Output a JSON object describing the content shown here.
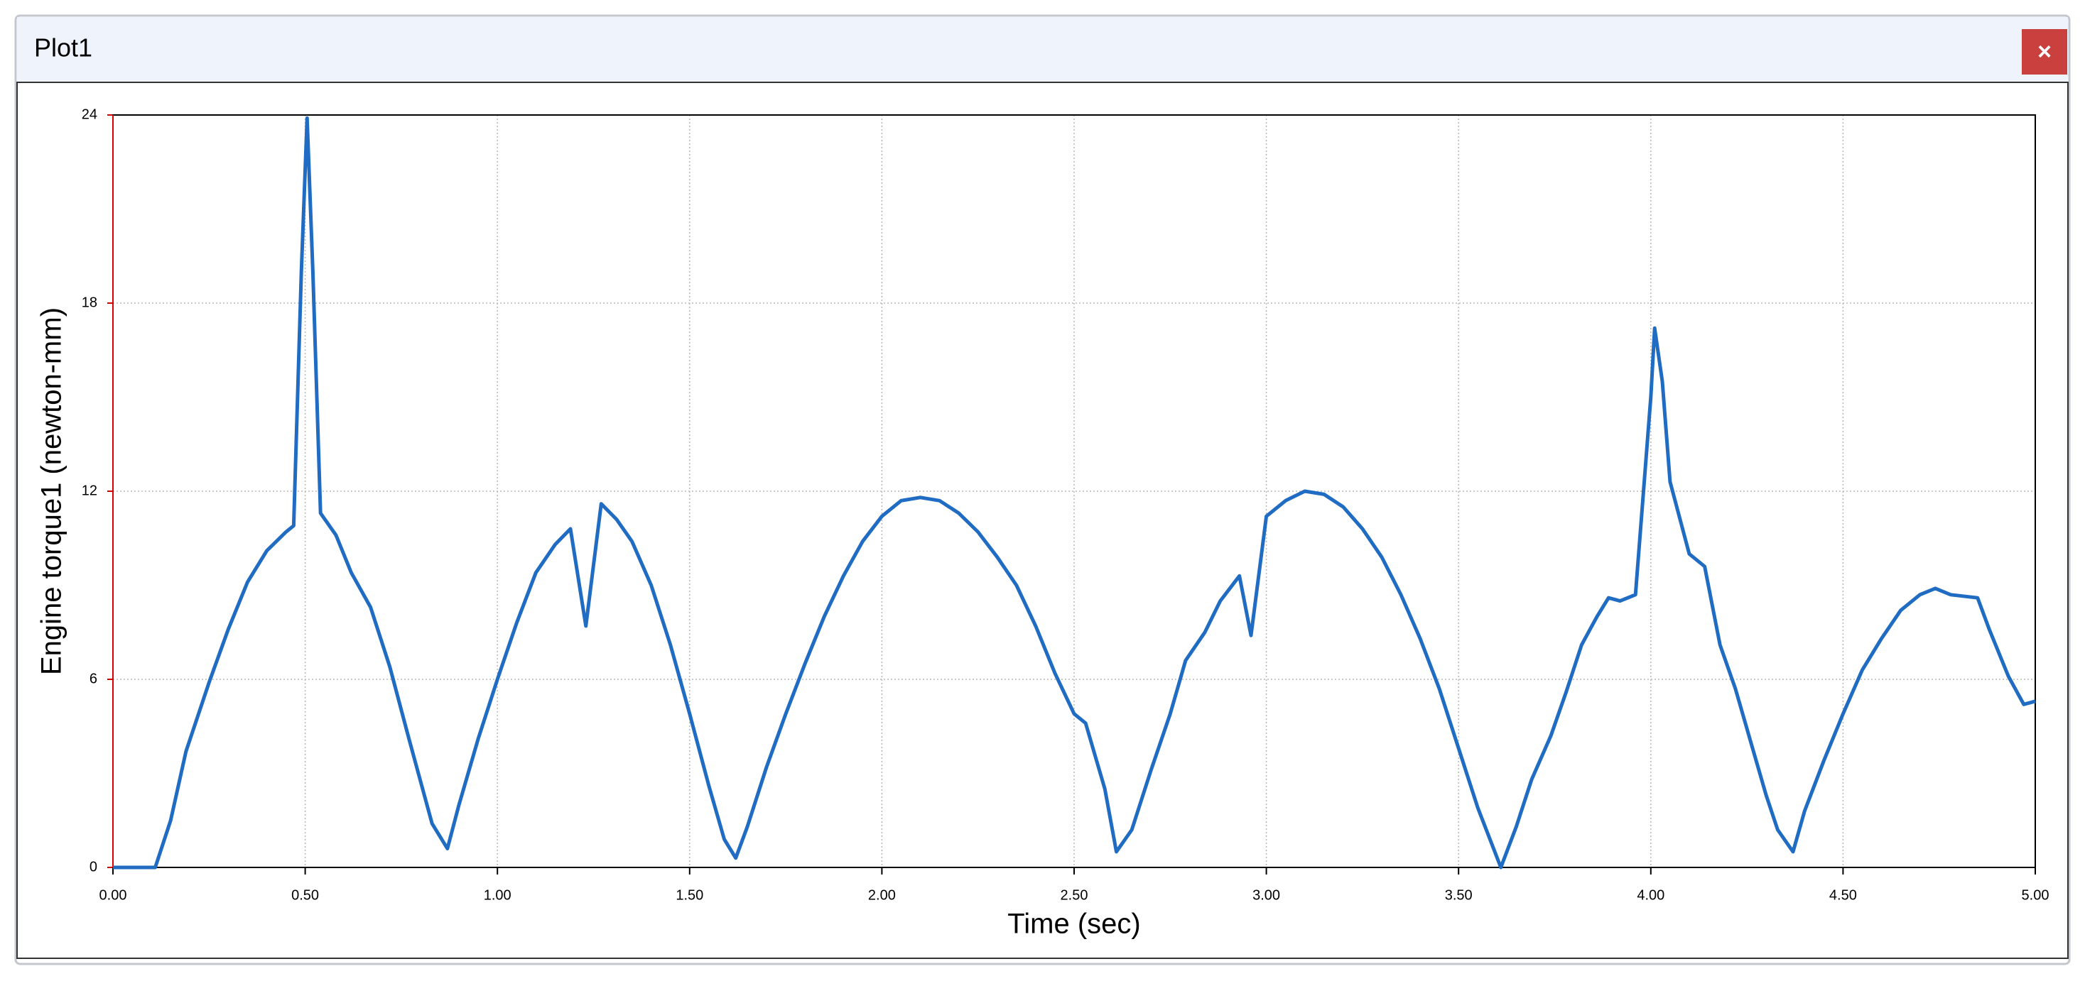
{
  "window": {
    "title": "Plot1",
    "close": "×"
  },
  "chart_data": {
    "type": "line",
    "x_label": "Time (sec)",
    "y_label": "Engine torque1 (newton-mm)",
    "xlim": [
      0,
      5
    ],
    "ylim": [
      0,
      24
    ],
    "xticks": [
      {
        "value": 0,
        "label": "0.00"
      },
      {
        "value": 0.5,
        "label": "0.50"
      },
      {
        "value": 1,
        "label": "1.00"
      },
      {
        "value": 1.5,
        "label": "1.50"
      },
      {
        "value": 2,
        "label": "2.00"
      },
      {
        "value": 2.5,
        "label": "2.50"
      },
      {
        "value": 3,
        "label": "3.00"
      },
      {
        "value": 3.5,
        "label": "3.50"
      },
      {
        "value": 4,
        "label": "4.00"
      },
      {
        "value": 4.5,
        "label": "4.50"
      },
      {
        "value": 5,
        "label": "5.00"
      }
    ],
    "yticks": [
      0,
      6,
      12,
      18,
      24
    ],
    "grid": true,
    "series": [
      {
        "color": "#1f6cc2",
        "x": [
          0.0,
          0.11,
          0.15,
          0.19,
          0.25,
          0.3,
          0.35,
          0.4,
          0.45,
          0.47,
          0.49,
          0.505,
          0.52,
          0.54,
          0.58,
          0.62,
          0.67,
          0.72,
          0.77,
          0.83,
          0.87,
          0.9,
          0.95,
          1.0,
          1.05,
          1.1,
          1.15,
          1.19,
          1.23,
          1.27,
          1.31,
          1.35,
          1.4,
          1.45,
          1.5,
          1.55,
          1.59,
          1.62,
          1.65,
          1.7,
          1.75,
          1.8,
          1.85,
          1.9,
          1.95,
          2.0,
          2.05,
          2.1,
          2.15,
          2.2,
          2.25,
          2.3,
          2.35,
          2.4,
          2.45,
          2.5,
          2.53,
          2.58,
          2.61,
          2.65,
          2.7,
          2.75,
          2.79,
          2.84,
          2.88,
          2.93,
          2.96,
          3.0,
          3.05,
          3.1,
          3.15,
          3.2,
          3.25,
          3.3,
          3.35,
          3.4,
          3.45,
          3.5,
          3.55,
          3.61,
          3.65,
          3.69,
          3.74,
          3.78,
          3.82,
          3.86,
          3.89,
          3.92,
          3.96,
          4.0,
          4.01,
          4.03,
          4.05,
          4.1,
          4.14,
          4.18,
          4.22,
          4.26,
          4.3,
          4.33,
          4.37,
          4.4,
          4.45,
          4.5,
          4.55,
          4.6,
          4.65,
          4.7,
          4.74,
          4.78,
          4.85,
          4.88,
          4.93,
          4.97,
          5.0
        ],
        "values": [
          0,
          0,
          1.5,
          3.7,
          5.9,
          7.6,
          9.1,
          10.1,
          10.7,
          10.9,
          19,
          23.9,
          19,
          11.3,
          10.6,
          9.4,
          8.3,
          6.4,
          4.1,
          1.4,
          0.6,
          2.0,
          4.1,
          6.0,
          7.8,
          9.4,
          10.3,
          10.8,
          7.7,
          11.6,
          11.1,
          10.4,
          9.0,
          7.1,
          4.9,
          2.6,
          0.9,
          0.3,
          1.3,
          3.2,
          4.9,
          6.5,
          8.0,
          9.3,
          10.4,
          11.2,
          11.7,
          11.8,
          11.7,
          11.3,
          10.7,
          9.9,
          9.0,
          7.7,
          6.2,
          4.9,
          4.6,
          2.5,
          0.5,
          1.2,
          3.1,
          4.9,
          6.6,
          7.5,
          8.5,
          9.3,
          7.4,
          11.2,
          11.7,
          12.0,
          11.9,
          11.5,
          10.8,
          9.9,
          8.7,
          7.3,
          5.7,
          3.8,
          1.9,
          0.0,
          1.3,
          2.8,
          4.2,
          5.6,
          7.1,
          8.0,
          8.6,
          8.5,
          8.7,
          15,
          17.2,
          15.5,
          12.3,
          10.0,
          9.6,
          7.1,
          5.7,
          4.0,
          2.3,
          1.2,
          0.5,
          1.8,
          3.4,
          4.9,
          6.3,
          7.3,
          8.2,
          8.7,
          8.9,
          8.7,
          8.6,
          7.6,
          6.1,
          5.2,
          5.3
        ]
      }
    ]
  }
}
